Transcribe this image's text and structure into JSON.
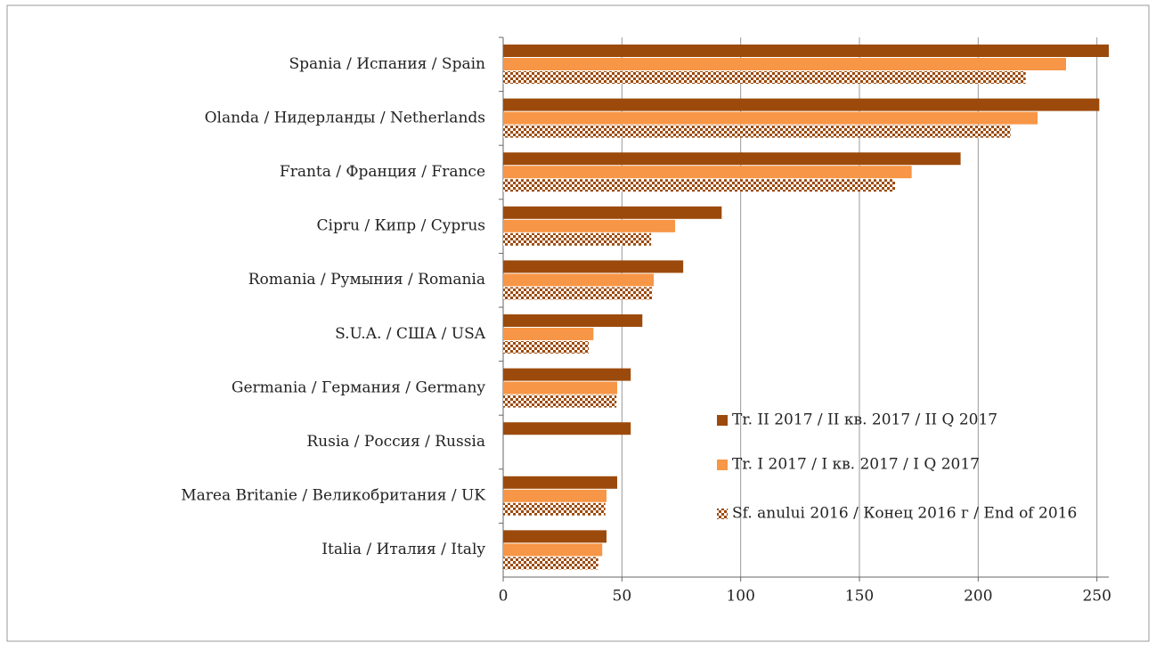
{
  "chart_data": {
    "type": "bar",
    "orientation": "horizontal",
    "categories": [
      "Spania / Испания / Spain",
      "Olanda / Нидерланды / Netherlands",
      "Franta / Франция / France",
      "Cipru / Кипр / Cyprus",
      "Romania / Румыния / Romania",
      "S.U.A. / США / USA",
      "Germania / Германия / Germany",
      "Rusia / Россия / Russia",
      "Marea Britanie / Великобритания / UK",
      "Italia / Италия / Italy"
    ],
    "series": [
      {
        "name": "Tr. II 2017 / II кв. 2017 / II Q 2017",
        "color": "#9c4a0b",
        "values": [
          255,
          251,
          192.6,
          92,
          75.8,
          58.6,
          53.7,
          53.7,
          48,
          43.5
        ]
      },
      {
        "name": "Tr. I 2017 / I кв. 2017 / I Q 2017",
        "color": "#f79646",
        "values": [
          237,
          225,
          172,
          72.4,
          63.4,
          38,
          48,
          null,
          43.5,
          41.7
        ]
      },
      {
        "name": "Sf. anului 2016 / Конец 2016 г / End of 2016",
        "color": "#9c4a0b",
        "pattern": "checkered",
        "values": [
          220,
          213.6,
          165,
          62.3,
          62.7,
          36,
          47.7,
          null,
          43,
          40
        ]
      }
    ],
    "xlim": [
      0,
      255
    ],
    "xticks": [
      0,
      50,
      100,
      150,
      200,
      250
    ],
    "grid": true,
    "legend": "lower right"
  }
}
